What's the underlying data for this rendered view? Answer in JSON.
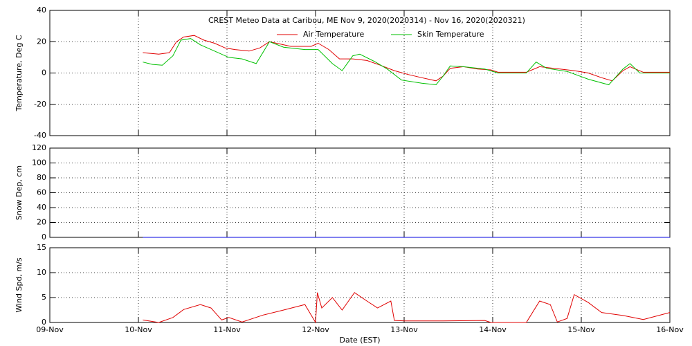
{
  "chart_data": [
    {
      "type": "line",
      "title": "CREST Meteo Data at Caribou, ME   Nov  9, 2020(2020314) - Nov 16, 2020(2020321)",
      "ylabel": "Temperature, Deg C",
      "xlim": [
        0,
        7
      ],
      "ylim": [
        -40,
        40
      ],
      "yticks": [
        -40,
        -20,
        0,
        20,
        40
      ],
      "grid": true,
      "series": [
        {
          "name": "Air Temperature",
          "color": "#e00000",
          "x": [
            1.05,
            1.23,
            1.35,
            1.43,
            1.51,
            1.63,
            1.74,
            1.86,
            1.98,
            2.09,
            2.25,
            2.37,
            2.48,
            2.56,
            2.72,
            2.95,
            3.03,
            3.15,
            3.27,
            3.42,
            3.58,
            3.73,
            3.89,
            4.05,
            4.2,
            4.36,
            4.44,
            4.52,
            4.67,
            4.83,
            4.98,
            5.06,
            5.38,
            5.53,
            5.69,
            5.92,
            6.08,
            6.23,
            6.35,
            6.47,
            6.55,
            6.7,
            7.0
          ],
          "values": [
            13,
            12,
            13,
            20,
            23,
            24,
            21,
            19,
            16,
            15,
            14,
            16,
            20,
            19,
            17,
            17,
            19,
            15,
            9,
            9,
            8,
            5,
            1.5,
            -1,
            -3,
            -5,
            -2,
            3,
            4,
            2.5,
            2,
            0.5,
            0.5,
            4,
            3,
            1.5,
            0,
            -3,
            -5,
            1.5,
            4,
            0.5,
            0.5
          ]
        },
        {
          "name": "Skin Temperature",
          "color": "#00c000",
          "x": [
            1.05,
            1.16,
            1.27,
            1.39,
            1.48,
            1.59,
            1.7,
            1.86,
            2.02,
            2.17,
            2.33,
            2.48,
            2.64,
            2.88,
            3.03,
            3.19,
            3.3,
            3.42,
            3.5,
            3.66,
            3.81,
            3.97,
            4.2,
            4.36,
            4.44,
            4.52,
            4.67,
            4.91,
            5.06,
            5.38,
            5.49,
            5.61,
            5.84,
            6.08,
            6.31,
            6.47,
            6.55,
            6.66,
            7.0
          ],
          "values": [
            7,
            5.5,
            5,
            11,
            21,
            22,
            18,
            14,
            10,
            9,
            6,
            20,
            16.5,
            15,
            15,
            6,
            1.5,
            11,
            12,
            7.5,
            2.5,
            -4.5,
            -6.5,
            -7.5,
            -2,
            4.5,
            4,
            2.5,
            0,
            0,
            7,
            3,
            1,
            -4,
            -7.5,
            2.5,
            6,
            0,
            0
          ]
        }
      ]
    },
    {
      "type": "line",
      "ylabel": "Snow Dep, cm",
      "xlim": [
        0,
        7
      ],
      "ylim": [
        0,
        120
      ],
      "yticks": [
        0,
        20,
        40,
        60,
        80,
        100,
        120
      ],
      "grid": true,
      "series": [
        {
          "color": "#0000e0",
          "x": [
            1.05,
            7.0
          ],
          "values": [
            0,
            0
          ]
        }
      ]
    },
    {
      "type": "line",
      "ylabel": "Wind Spd, m/s",
      "xlabel": "Date (EST)",
      "xlim": [
        0,
        7
      ],
      "xticks": [
        {
          "value": 0,
          "label": "09-Nov"
        },
        {
          "value": 1,
          "label": "10-Nov"
        },
        {
          "value": 2,
          "label": "11-Nov"
        },
        {
          "value": 3,
          "label": "12-Nov"
        },
        {
          "value": 4,
          "label": "13-Nov"
        },
        {
          "value": 5,
          "label": "14-Nov"
        },
        {
          "value": 6,
          "label": "15-Nov"
        },
        {
          "value": 7,
          "label": "16-Nov"
        }
      ],
      "ylim": [
        0,
        15
      ],
      "yticks": [
        0,
        5,
        10,
        15
      ],
      "grid": true,
      "series": [
        {
          "color": "#e00000",
          "x": [
            1.05,
            1.23,
            1.39,
            1.51,
            1.7,
            1.82,
            1.94,
            2.02,
            2.17,
            2.41,
            2.64,
            2.88,
            3.0,
            3.02,
            3.07,
            3.19,
            3.3,
            3.44,
            3.58,
            3.7,
            3.85,
            3.89,
            4.01,
            4.44,
            4.91,
            4.98,
            5.38,
            5.53,
            5.65,
            5.73,
            5.84,
            5.92,
            6.08,
            6.23,
            6.47,
            6.7,
            7.0
          ],
          "values": [
            0.5,
            0,
            1,
            2.6,
            3.6,
            2.9,
            0.5,
            1,
            0.1,
            1.5,
            2.5,
            3.6,
            0,
            6,
            2.9,
            5,
            2.5,
            6,
            4.3,
            2.9,
            4.3,
            0.4,
            0.3,
            0.3,
            0.4,
            0,
            0,
            4.3,
            3.6,
            0.1,
            0.8,
            5.6,
            4.0,
            2,
            1.4,
            0.6,
            2
          ]
        }
      ]
    }
  ]
}
